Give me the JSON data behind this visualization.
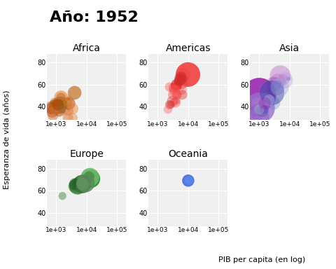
{
  "title": "Año: 1952",
  "xlabel": "PIB per capita (en log)",
  "ylabel": "Esperanza de vida (años)",
  "continents": [
    "Africa",
    "Americas",
    "Asia",
    "Europe",
    "Oceania"
  ],
  "continent_colors": {
    "Africa": [
      "#c8601a",
      "#d4703a",
      "#e8934a",
      "#f0a050",
      "#c87030",
      "#b05000",
      "#d08040",
      "#e09060",
      "#c06020",
      "#b04010",
      "#e07030",
      "#d06020",
      "#c84810",
      "#e08848",
      "#d07838",
      "#b83810",
      "#c05828",
      "#d86830",
      "#e89050",
      "#a03010",
      "#b84820",
      "#cc6030",
      "#e07840",
      "#a04020",
      "#d07838",
      "#c86828",
      "#b85818",
      "#a84808",
      "#f0a060",
      "#e09050",
      "#d08040",
      "#c05820",
      "#b84810",
      "#a84008",
      "#cc7038",
      "#d06828",
      "#e08038",
      "#b07030",
      "#c87828",
      "#d08838",
      "#a06020",
      "#b87030",
      "#c88040",
      "#d49050",
      "#e0a060",
      "#c87838",
      "#b86828",
      "#a85818",
      "#986808",
      "#d07030",
      "#c06020",
      "#b05010",
      "#a04000",
      "#906838"
    ],
    "Americas": [
      "#cc1010",
      "#e02020",
      "#f04040",
      "#ff5555",
      "#dd1010",
      "#bb0000",
      "#ee2020",
      "#ff4040",
      "#cc0000",
      "#dd1515",
      "#ee2525",
      "#ff3535",
      "#cc0808",
      "#dd1818",
      "#ee2828",
      "#ff3838",
      "#cc1818",
      "#dd2828",
      "#ee4040",
      "#ff5050",
      "#cc2828",
      "#dd3838",
      "#ee5050",
      "#ff6060",
      "#cc3838"
    ],
    "Asia": [
      "#6a0dad",
      "#7b1fa2",
      "#9c27b0",
      "#ab47bc",
      "#ba68c8",
      "#ce93d8",
      "#e1bee7",
      "#4a148c",
      "#6a1b9a",
      "#7b1fa2",
      "#8e24aa",
      "#9c27b0",
      "#ab47bc",
      "#ba68c8",
      "#ce93d8",
      "#e1bee7",
      "#7e57c2",
      "#9575cd",
      "#b39ddb",
      "#d1c4e9",
      "#5e35b1",
      "#673ab7",
      "#7986cb",
      "#5c6bc0",
      "#3949ab",
      "#3f51b5",
      "#9fa8da",
      "#c5cae9",
      "#b0bec5",
      "#8e24aa"
    ],
    "Europe": [
      "#006400",
      "#228b22",
      "#2e8b57",
      "#3cb371",
      "#50c050",
      "#66bb44",
      "#1a7a1a",
      "#2a8a2a",
      "#3a9a3a",
      "#4aaa4a",
      "#5aba5a",
      "#6aca6a",
      "#1a6a1a",
      "#2a7a2a",
      "#3a8a3a",
      "#4a9a4a",
      "#5aaa5a",
      "#6aba6a",
      "#1a5a1a",
      "#2a6a2a",
      "#3a7a3a",
      "#4a8a4a",
      "#5a9a5a",
      "#6aaa6a",
      "#1a4a1a",
      "#2a5a2a",
      "#3a6a3a",
      "#4a7a4a",
      "#5a8a5a",
      "#6a9a6a"
    ],
    "Oceania": [
      "#4169e1",
      "#6495ed"
    ]
  },
  "data": {
    "Africa": {
      "gdp": [
        1253,
        2449,
        3521,
        2127,
        779,
        1147,
        1443,
        1173,
        1180,
        1189,
        1339,
        2130,
        852,
        3521,
        1952,
        1030,
        1107,
        1071,
        851,
        936,
        1690,
        743,
        2423,
        1246,
        781,
        1293,
        1268,
        1165,
        1443,
        1007,
        921,
        2627,
        1173,
        686,
        2756,
        1367,
        1252,
        1077,
        855,
        1723,
        899,
        888,
        4025,
        1213,
        3008,
        1280,
        1408,
        1445,
        1650,
        786,
        649,
        879,
        1146,
        1588
      ],
      "life_exp": [
        43.1,
        30.0,
        38.2,
        47.6,
        32.0,
        40.7,
        38.1,
        40.5,
        39.0,
        39.1,
        41.9,
        43.1,
        38.5,
        30.0,
        38.6,
        42.1,
        40.7,
        42.1,
        39.0,
        40.0,
        44.6,
        35.5,
        36.7,
        38.5,
        40.5,
        42.0,
        36.3,
        42.1,
        48.5,
        43.0,
        41.0,
        43.1,
        40.5,
        38.5,
        46.5,
        42.0,
        38.6,
        42.1,
        40.7,
        44.6,
        41.9,
        39.0,
        52.7,
        42.1,
        42.0,
        44.0,
        38.5,
        48.5,
        42.0,
        36.7,
        40.0,
        44.0,
        41.8,
        38.0
      ],
      "pop": [
        9172983,
        4469979,
        5860342,
        2445618,
        4713416,
        17392984,
        3582310,
        2439944,
        8550362,
        1418723,
        6939498,
        8550362,
        1739529,
        2982653,
        4232095,
        5703324,
        8322925,
        4762912,
        2534927,
        3446682,
        1646981,
        7552318,
        5690799,
        4229554,
        2143249,
        5548981,
        6860147,
        3838168,
        14264935,
        3146381,
        11026383,
        9711165,
        3444369,
        6860147,
        1028527,
        3647735,
        4978677,
        6984027,
        2827334,
        3453434,
        2445618,
        5527292,
        13933816,
        7688797,
        2984870,
        8025700,
        4286552,
        2755589,
        3336000,
        2252842,
        5006579,
        2310904,
        6803672,
        1438760
      ]
    },
    "Americas": {
      "gdp": [
        5911,
        7029,
        9867,
        5911,
        6424,
        4129,
        4311,
        3677,
        2480,
        3357,
        3923,
        4086,
        5352,
        5903,
        3834,
        2428,
        2693,
        4162,
        3249,
        2180,
        5812,
        3048,
        4311,
        3530,
        5693
      ],
      "life_exp": [
        62.5,
        68.8,
        69.2,
        55.9,
        50.9,
        59.4,
        50.9,
        55.2,
        41.9,
        57.2,
        58.0,
        45.9,
        64.3,
        67.5,
        43.9,
        57.9,
        42.0,
        60.4,
        50.8,
        37.6,
        65.1,
        45.0,
        50.9,
        54.7,
        66.1
      ],
      "pop": [
        17876956,
        14785584,
        153546886,
        6377619,
        3558137,
        6251745,
        2042485,
        3940188,
        2491346,
        3746386,
        4011539,
        1517453,
        6007797,
        3422448,
        3942491,
        2491346,
        1373230,
        6007797,
        5009249,
        2073423,
        8120927,
        5828396,
        3546070,
        6867095,
        10162967
      ]
    },
    "Asia": {
      "gdp": [
        779,
        855,
        1011,
        2497,
        4007,
        1388,
        857,
        2444,
        754,
        3035,
        1546,
        835,
        5990,
        4931,
        1704,
        1272,
        1468,
        1030,
        6960,
        4267,
        1462,
        3776,
        3035,
        9253,
        2657,
        1266,
        4698,
        2117,
        1000,
        1516
      ],
      "life_exp": [
        28.8,
        37.5,
        50.9,
        55.6,
        63.0,
        37.5,
        43.2,
        54.0,
        36.3,
        60.4,
        42.3,
        31.3,
        65.4,
        68.0,
        45.9,
        37.5,
        57.6,
        39.0,
        64.0,
        55.6,
        37.5,
        57.0,
        43.2,
        65.4,
        52.7,
        36.3,
        57.6,
        45.9,
        37.5,
        43.2
      ],
      "pop": [
        8425333,
        46886859,
        556263527,
        3518107,
        22284500,
        100610090,
        6748394,
        3849594,
        6250401,
        20092996,
        7850095,
        153070000,
        2702000,
        82052000,
        20947571,
        8240410,
        6960067,
        377967544,
        28060699,
        6748394,
        2315479,
        20433686,
        10097382,
        35607,
        153070000,
        8425333,
        46886859,
        6340697,
        3821338,
        9182536
      ]
    },
    "Europe": {
      "gdp": [
        1601,
        6137,
        9692,
        8343,
        9268,
        9984,
        13990,
        5210,
        14734,
        7236,
        4215,
        3947,
        4834,
        5757,
        7168,
        7332,
        10095,
        12791,
        6674,
        7029,
        4086,
        7598,
        5970,
        6389,
        4140,
        12110,
        7485,
        5487,
        9284,
        7267
      ],
      "life_exp": [
        55.2,
        68.0,
        68.9,
        66.8,
        70.8,
        72.7,
        70.8,
        65.9,
        72.1,
        67.4,
        64.4,
        63.9,
        64.0,
        65.6,
        65.4,
        67.5,
        70.8,
        72.1,
        68.9,
        65.9,
        63.9,
        69.1,
        65.4,
        68.9,
        65.9,
        72.7,
        65.4,
        60.4,
        66.8,
        65.9
      ],
      "pop": [
        1282697,
        8730405,
        2791388,
        9125183,
        4334000,
        3940702,
        43931396,
        2637297,
        8730405,
        10315702,
        9319622,
        10338594,
        28549870,
        4334000,
        4334000,
        2534927,
        3375000,
        50430000,
        2710,
        46796892,
        7124673,
        6315682,
        2791388,
        3376937,
        8148312,
        4628855,
        8736453,
        2252842,
        45598081,
        10022568
      ]
    },
    "Oceania": {
      "gdp": [
        10040,
        10557
      ],
      "life_exp": [
        69.1,
        69.4
      ],
      "pop": [
        8691212,
        1994794
      ]
    }
  },
  "xlim": [
    500,
    200000
  ],
  "ylim": [
    28,
    88
  ],
  "yticks": [
    40,
    60,
    80
  ],
  "background_color": "#ffffff",
  "panel_bg": "#f0f0f0",
  "grid_color": "#ffffff",
  "title_fontsize": 16,
  "label_fontsize": 8,
  "panel_title_fontsize": 10,
  "tick_fontsize": 7,
  "global_pop_ref": 556263527
}
